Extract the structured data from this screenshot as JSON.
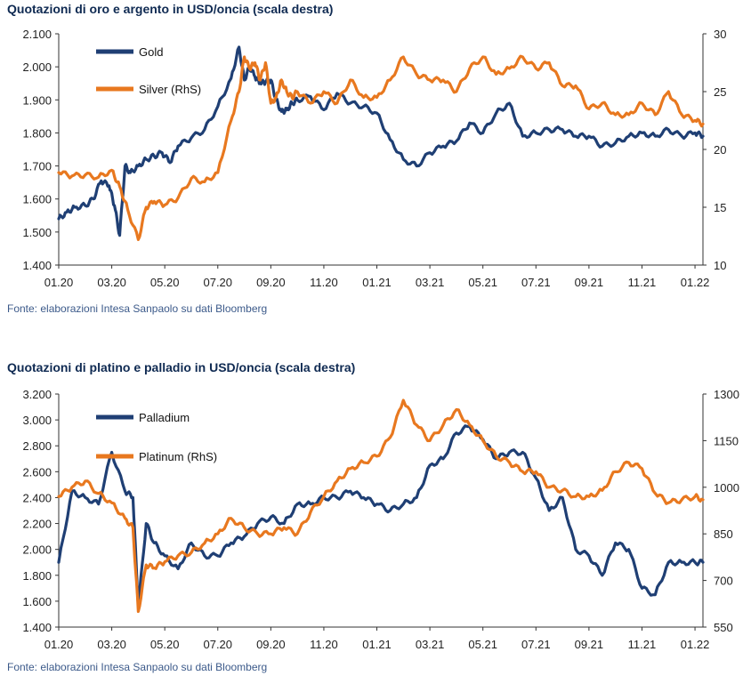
{
  "colors": {
    "navy": "#1f3f74",
    "orange": "#e8781f",
    "title": "#0f2a52",
    "axis": "#333333"
  },
  "chart_data": [
    {
      "type": "line",
      "title": "Quotazioni di oro e argento in USD/oncia (scala destra)",
      "source": "Fonte: elaborazioni Intesa Sanpaolo su dati Bloomberg",
      "x_tick_labels": [
        "01.20",
        "03.20",
        "05.20",
        "07.20",
        "09.20",
        "11.20",
        "01.21",
        "03.21",
        "05.21",
        "07.21",
        "09.21",
        "11.21",
        "01.22"
      ],
      "left_axis": {
        "ylim": [
          1400,
          2100
        ],
        "ticks": [
          1400,
          1500,
          1600,
          1700,
          1800,
          1900,
          2000,
          2100
        ],
        "tick_labels": [
          "1.400",
          "1.500",
          "1.600",
          "1.700",
          "1.800",
          "1.900",
          "2.000",
          "2.100"
        ]
      },
      "right_axis": {
        "ylim": [
          10,
          30
        ],
        "ticks": [
          10,
          15,
          20,
          25,
          30
        ],
        "tick_labels": [
          "10",
          "15",
          "20",
          "25",
          "30"
        ]
      },
      "legend_position": "top-left",
      "series": [
        {
          "name": "Gold",
          "axis": "left",
          "color": "#1f3f74",
          "x": [
            0,
            0.3,
            0.6,
            1,
            1.3,
            1.6,
            1.9,
            2.1,
            2.3,
            2.5,
            2.7,
            3,
            3.3,
            3.6,
            3.9,
            4.2,
            4.5,
            5,
            5.5,
            6,
            6.5,
            6.8,
            7,
            7.2,
            7.4,
            7.6,
            7.8,
            8,
            8.2,
            8.4,
            8.6,
            8.8,
            9,
            9.5,
            10,
            10.5,
            11,
            11.5,
            12,
            12.5,
            13,
            13.5,
            14,
            14.5,
            15,
            15.5,
            16,
            16.5,
            17,
            17.5,
            18,
            18.5,
            19,
            19.5,
            20,
            20.5,
            21,
            21.5,
            22,
            22.5,
            23,
            23.5,
            24,
            24.3
          ],
          "y": [
            1540,
            1560,
            1575,
            1580,
            1600,
            1655,
            1640,
            1580,
            1490,
            1700,
            1680,
            1700,
            1720,
            1730,
            1740,
            1710,
            1760,
            1785,
            1810,
            1880,
            1965,
            2060,
            1960,
            2000,
            1970,
            1950,
            1955,
            1960,
            1900,
            1865,
            1870,
            1890,
            1900,
            1910,
            1870,
            1920,
            1890,
            1880,
            1860,
            1780,
            1720,
            1700,
            1740,
            1760,
            1775,
            1830,
            1800,
            1860,
            1890,
            1790,
            1800,
            1810,
            1810,
            1790,
            1790,
            1760,
            1770,
            1790,
            1800,
            1790,
            1810,
            1790,
            1800,
            1790
          ]
        },
        {
          "name": "Silver (RhS)",
          "axis": "right",
          "color": "#e8781f",
          "x": [
            0,
            0.5,
            1,
            1.5,
            2,
            2.3,
            2.6,
            3,
            3.3,
            3.6,
            4,
            4.5,
            5,
            5.5,
            6,
            6.5,
            6.8,
            7,
            7.2,
            7.4,
            7.6,
            7.8,
            8,
            8.2,
            8.4,
            8.6,
            8.8,
            9,
            9.5,
            10,
            10.5,
            11,
            11.5,
            12,
            12.5,
            13,
            13.5,
            14,
            14.5,
            15,
            15.5,
            16,
            16.5,
            17,
            17.5,
            18,
            18.5,
            19,
            19.5,
            20,
            20.5,
            21,
            21.5,
            22,
            22.5,
            23,
            23.5,
            24,
            24.3
          ],
          "y": [
            18,
            17.7,
            17.8,
            17.6,
            18.2,
            16.8,
            14.8,
            12.2,
            15,
            15.5,
            15.2,
            15.8,
            17.5,
            17.2,
            18,
            22.5,
            25,
            28,
            27,
            27.5,
            26,
            27.5,
            24,
            24.5,
            26,
            25,
            24.5,
            25,
            24,
            25,
            24,
            26,
            24.5,
            24.5,
            26,
            28,
            26.5,
            26,
            26,
            25,
            27,
            28,
            26.5,
            27,
            28,
            27,
            27.5,
            25.5,
            25.5,
            23.5,
            24,
            23,
            23,
            24,
            23,
            25,
            23,
            22.5,
            22.2
          ]
        }
      ]
    },
    {
      "type": "line",
      "title": "Quotazioni di platino e palladio in USD/oncia (scala destra)",
      "source": "Fonte: elaborazioni Intesa Sanpaolo su dati Bloomberg",
      "x_tick_labels": [
        "01.20",
        "03.20",
        "05.20",
        "07.20",
        "09.20",
        "11.20",
        "01.21",
        "03.21",
        "05.21",
        "07.21",
        "09.21",
        "11.21",
        "01.22"
      ],
      "left_axis": {
        "ylim": [
          1400,
          3200
        ],
        "ticks": [
          1400,
          1600,
          1800,
          2000,
          2200,
          2400,
          2600,
          2800,
          3000,
          3200
        ],
        "tick_labels": [
          "1.400",
          "1.600",
          "1.800",
          "2.000",
          "2.200",
          "2.400",
          "2.600",
          "2.800",
          "3.000",
          "3.200"
        ]
      },
      "right_axis": {
        "ylim": [
          550,
          1300
        ],
        "ticks": [
          550,
          700,
          850,
          1000,
          1150,
          1300
        ],
        "tick_labels": [
          "550",
          "700",
          "850",
          "1000",
          "1150",
          "1300"
        ]
      },
      "legend_position": "top-left",
      "series": [
        {
          "name": "Palladium",
          "axis": "left",
          "color": "#1f3f74",
          "x": [
            0,
            0.5,
            1,
            1.5,
            2,
            2.5,
            2.8,
            3,
            3.3,
            3.6,
            4,
            4.5,
            5,
            5.5,
            6,
            6.5,
            7,
            7.5,
            8,
            8.5,
            9,
            9.5,
            10,
            10.5,
            11,
            11.5,
            12,
            12.5,
            13,
            13.5,
            14,
            14.5,
            15,
            15.5,
            16,
            16.5,
            17,
            17.5,
            18,
            18.5,
            19,
            19.5,
            20,
            20.5,
            21,
            21.5,
            22,
            22.5,
            23,
            23.5,
            24,
            24.3
          ],
          "y": [
            1900,
            2450,
            2400,
            2350,
            2750,
            2450,
            2400,
            1560,
            2200,
            2050,
            1950,
            1850,
            2050,
            1950,
            1950,
            2050,
            2100,
            2200,
            2250,
            2200,
            2350,
            2350,
            2400,
            2400,
            2450,
            2400,
            2350,
            2300,
            2350,
            2400,
            2650,
            2700,
            2900,
            2950,
            2850,
            2700,
            2750,
            2750,
            2550,
            2300,
            2400,
            2000,
            1950,
            1800,
            2050,
            2000,
            1700,
            1650,
            1900,
            1900,
            1900,
            1900
          ]
        },
        {
          "name": "Platinum (RhS)",
          "axis": "right",
          "color": "#e8781f",
          "x": [
            0,
            0.5,
            1,
            1.5,
            2,
            2.5,
            2.8,
            3,
            3.3,
            3.6,
            4,
            4.5,
            5,
            5.5,
            6,
            6.5,
            7,
            7.5,
            8,
            8.5,
            9,
            9.5,
            10,
            10.5,
            11,
            11.5,
            12,
            12.5,
            13,
            13.5,
            14,
            14.5,
            15,
            15.5,
            16,
            16.5,
            17,
            17.5,
            18,
            18.5,
            19,
            19.5,
            20,
            20.5,
            21,
            21.5,
            22,
            22.5,
            23,
            23.5,
            24,
            24.3
          ],
          "y": [
            970,
            1000,
            1020,
            980,
            950,
            900,
            870,
            600,
            750,
            740,
            760,
            780,
            790,
            820,
            850,
            900,
            870,
            850,
            850,
            870,
            850,
            920,
            970,
            1020,
            1060,
            1080,
            1100,
            1160,
            1280,
            1200,
            1150,
            1200,
            1250,
            1200,
            1150,
            1100,
            1080,
            1050,
            1050,
            1000,
            990,
            970,
            970,
            990,
            1050,
            1080,
            1060,
            980,
            950,
            960,
            970,
            960
          ]
        }
      ]
    }
  ]
}
